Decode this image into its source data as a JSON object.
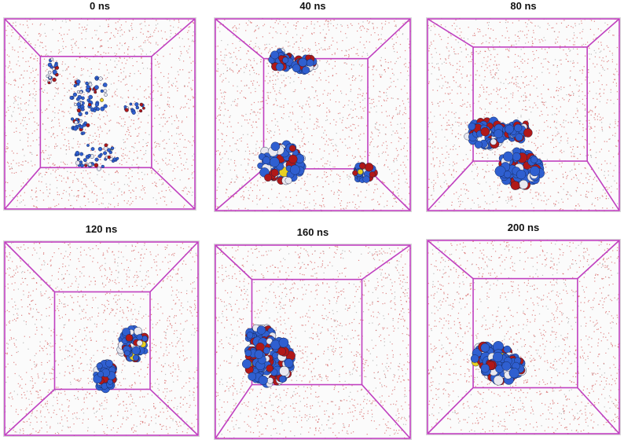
{
  "figure": {
    "panels": [
      {
        "time_label": "0 ns"
      },
      {
        "time_label": "40 ns"
      },
      {
        "time_label": "80 ns"
      },
      {
        "time_label": "120 ns"
      },
      {
        "time_label": "160 ns"
      },
      {
        "time_label": "200 ns"
      }
    ]
  },
  "colors": {
    "box_edges": "#c040c0",
    "water": "#d04848",
    "protein_blue": "#2f5fd0",
    "protein_red": "#b01818",
    "protein_white": "#e8e8f0",
    "protein_yellow": "#e8d020"
  }
}
